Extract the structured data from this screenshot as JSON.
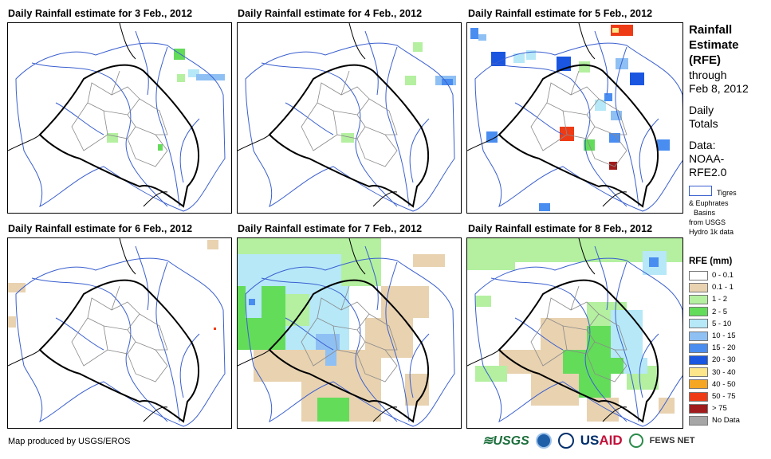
{
  "panels": [
    {
      "title": "Daily Rainfall estimate for 3 Feb., 2012"
    },
    {
      "title": "Daily Rainfall estimate for 4 Feb., 2012"
    },
    {
      "title": "Daily Rainfall estimate for 5 Feb., 2012"
    },
    {
      "title": "Daily Rainfall estimate for 6 Feb., 2012"
    },
    {
      "title": "Daily Rainfall estimate for 7 Feb., 2012"
    },
    {
      "title": "Daily Rainfall estimate for 8 Feb., 2012"
    }
  ],
  "sidebar": {
    "title_lines": [
      "Rainfall",
      "Estimate",
      "(RFE)"
    ],
    "through": "through",
    "through_date": "Feb 8, 2012",
    "daily": "Daily",
    "totals": "Totals",
    "data_label": "Data:",
    "data_src_1": "NOAA-",
    "data_src_2": "RFE2.0",
    "basin_lines": [
      "Tigres",
      "& Euphrates",
      "Basins",
      "from USGS",
      "Hydro 1k data"
    ]
  },
  "legend": {
    "title": "RFE (mm)",
    "items": [
      {
        "label": "0 - 0.1",
        "color": "#ffffff"
      },
      {
        "label": "0.1 - 1",
        "color": "#e8d2b0"
      },
      {
        "label": "1 - 2",
        "color": "#b4f0a0"
      },
      {
        "label": "2 - 5",
        "color": "#63dc5a"
      },
      {
        "label": "5 - 10",
        "color": "#b6e8f8"
      },
      {
        "label": "10 - 15",
        "color": "#8fc0f4"
      },
      {
        "label": "15 - 20",
        "color": "#4a8df0"
      },
      {
        "label": "20 - 30",
        "color": "#1a56e0"
      },
      {
        "label": "30 - 40",
        "color": "#fde58a"
      },
      {
        "label": "40 - 50",
        "color": "#f5a623"
      },
      {
        "label": "50 - 75",
        "color": "#ee3b16"
      },
      {
        "label": "> 75",
        "color": "#a01c1c"
      },
      {
        "label": "No Data",
        "color": "#a6a6a6"
      }
    ]
  },
  "footer": {
    "credit": "Map produced by USGS/EROS",
    "logo_usgs": "≋USGS",
    "logo_usaid_a": "US",
    "logo_usaid_b": "AID",
    "logo_fews": "FEWS NET"
  }
}
